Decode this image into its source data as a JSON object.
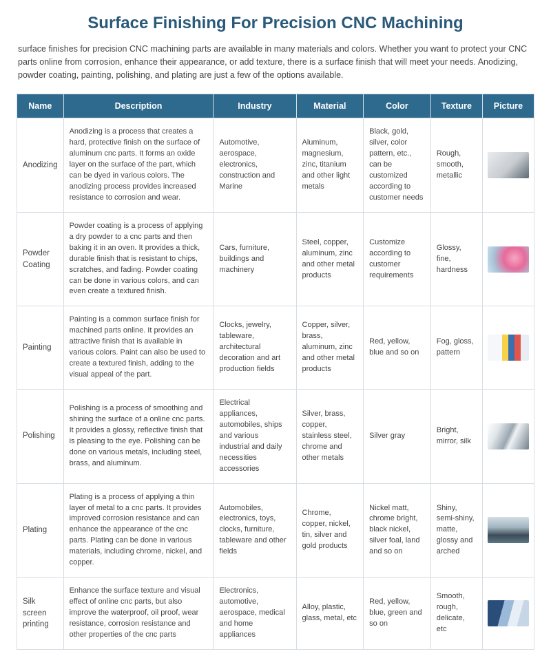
{
  "title": "Surface Finishing For Precision CNC Machining",
  "intro": "surface finishes for precision CNC machining parts are available in many materials and colors. Whether you want to protect your CNC parts online from corrosion, enhance their appearance, or add texture, there is a surface finish that will meet your needs. Anodizing, powder coating, painting, polishing, and plating are just a few of the options available.",
  "columns": [
    "Name",
    "Description",
    "Industry",
    "Material",
    "Color",
    "Texture",
    "Picture"
  ],
  "header_bg": "#2e6a8e",
  "header_fg": "#ffffff",
  "border_color": "#d7dde2",
  "body_text_color": "#444444",
  "title_color": "#2a5a7a",
  "rows": [
    {
      "name": "Anodizing",
      "description": "Anodizing is a process that creates a hard, protective finish on the surface of aluminum cnc parts. It forms an oxide layer on the surface of the part, which can be dyed in various colors. The anodizing process provides increased resistance to corrosion and wear.",
      "industry": "Automotive, aerospace, electronics, construction and Marine",
      "material": "Aluminum, magnesium, zinc, titanium and other light metals",
      "color": "Black, gold, silver, color pattern, etc., can be customized according to customer needs",
      "texture": "Rough, smooth, metallic",
      "thumb_class": "anodize"
    },
    {
      "name": "Powder Coating",
      "description": "Powder coating is a process of applying a dry powder to a cnc parts and then baking it in an oven. It provides a thick, durable finish that is resistant to chips, scratches, and fading. Powder coating can be done in various colors, and can even create a textured finish.",
      "industry": "Cars, furniture, buildings and machinery",
      "material": "Steel, copper, aluminum, zinc and other metal products",
      "color": "Customize according to customer requirements",
      "texture": "Glossy, fine, hardness",
      "thumb_class": "powder"
    },
    {
      "name": "Painting",
      "description": "Painting is a common surface finish for machined parts online. It provides an attractive finish that is available in various colors. Paint can also be used to create a textured finish, adding to the visual appeal of the part.",
      "industry": "Clocks, jewelry, tableware, architectural decoration and art production fields",
      "material": "Copper, silver, brass, aluminum, zinc and other metal products",
      "color": "Red, yellow, blue and so on",
      "texture": "Fog, gloss, pattern",
      "thumb_class": "paint"
    },
    {
      "name": "Polishing",
      "description": "Polishing is a process of smoothing and shining the surface of a online cnc parts. It provides a glossy, reflective finish that is pleasing to the eye. Polishing can be done on various metals, including steel, brass, and aluminum.",
      "industry": "Electrical appliances, automobiles, ships and various industrial and daily necessities accessories",
      "material": "Silver, brass, copper, stainless steel, chrome and other metals",
      "color": "Silver gray",
      "texture": "Bright, mirror, silk",
      "thumb_class": "polish"
    },
    {
      "name": "Plating",
      "description": "Plating is a process of applying a thin layer of metal to a cnc parts. It provides improved corrosion resistance and can enhance the appearance of the cnc parts. Plating can be done in various materials, including chrome, nickel, and copper.",
      "industry": "Automobiles, electronics, toys, clocks, furniture, tableware and other fields",
      "material": "Chrome, copper, nickel, tin, silver and gold products",
      "color": "Nickel matt, chrome bright, black nickel, silver foal, land and so on",
      "texture": "Shiny, semi-shiny, matte, glossy and arched",
      "thumb_class": "plate"
    },
    {
      "name": "Silk screen printing",
      "description": "Enhance the surface texture and visual effect of online cnc parts, but also improve the waterproof, oil proof, wear resistance, corrosion resistance and other properties of the cnc parts",
      "industry": "Electronics, automotive, aerospace, medical and home appliances",
      "material": "Alloy, plastic, glass, metal, etc",
      "color": "Red, yellow, blue, green and so on",
      "texture": "Smooth, rough, delicate, etc",
      "thumb_class": "silk"
    }
  ]
}
